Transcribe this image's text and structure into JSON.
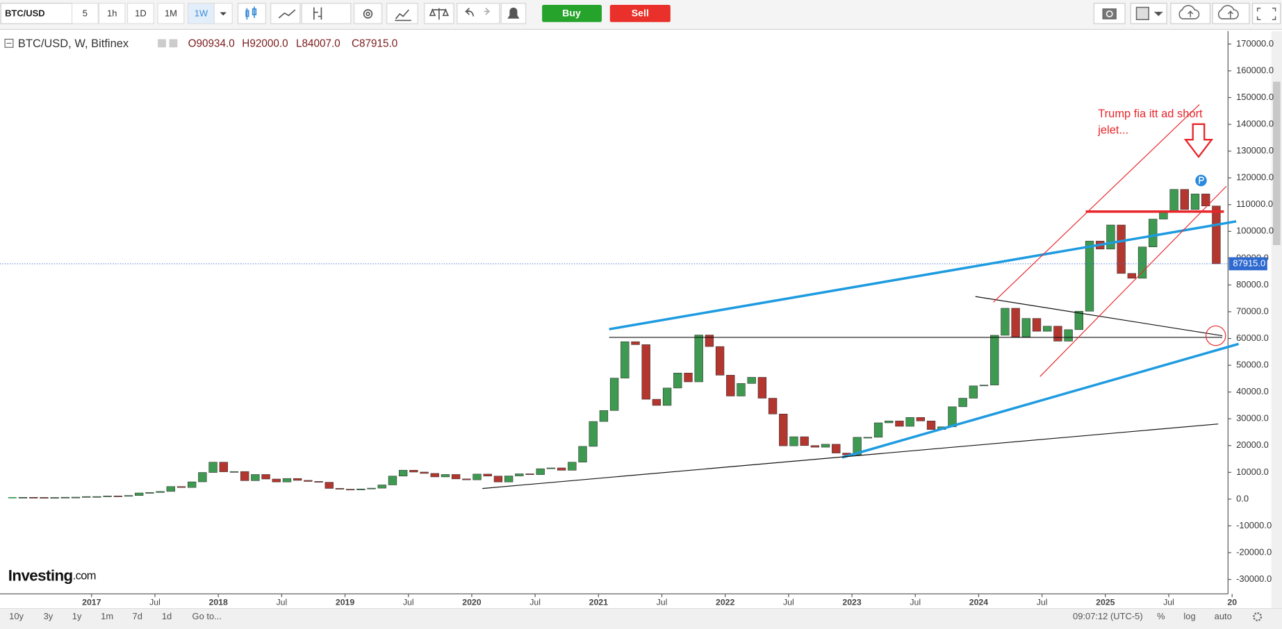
{
  "toolbar": {
    "symbol": "BTC/USD",
    "intervals": [
      "5",
      "1h",
      "1D",
      "1M",
      "1W"
    ],
    "active_interval": "1W",
    "buy": "Buy",
    "sell": "Sell"
  },
  "chart_data": {
    "type": "candlestick",
    "title": "BTC/USD, W, Bitfinex",
    "ohlc": [
      "O90934.0",
      "H92000.0",
      "L84007.0",
      "C87915.0"
    ],
    "annotation": [
      "Trump fia itt ad short",
      "jelet..."
    ],
    "up_color": "#3d9a50",
    "down_color": "#b3362f",
    "grid": false,
    "x": [
      "2016-05",
      "2016-06",
      "2016-07",
      "2016-08",
      "2016-09",
      "2016-10",
      "2016-11",
      "2016-12",
      "2017-01",
      "2017-02",
      "2017-03",
      "2017-04",
      "2017-05",
      "2017-06",
      "2017-07",
      "2017-08",
      "2017-09",
      "2017-10",
      "2017-11",
      "2017-12",
      "2018-01",
      "2018-02",
      "2018-03",
      "2018-04",
      "2018-05",
      "2018-06",
      "2018-07",
      "2018-08",
      "2018-09",
      "2018-10",
      "2018-11",
      "2018-12",
      "2019-01",
      "2019-02",
      "2019-03",
      "2019-04",
      "2019-05",
      "2019-06",
      "2019-07",
      "2019-08",
      "2019-09",
      "2019-10",
      "2019-11",
      "2019-12",
      "2020-01",
      "2020-02",
      "2020-03",
      "2020-04",
      "2020-05",
      "2020-06",
      "2020-07",
      "2020-08",
      "2020-09",
      "2020-10",
      "2020-11",
      "2020-12",
      "2021-01",
      "2021-02",
      "2021-03",
      "2021-04",
      "2021-05",
      "2021-06",
      "2021-07",
      "2021-08",
      "2021-09",
      "2021-10",
      "2021-11",
      "2021-12",
      "2022-01",
      "2022-02",
      "2022-03",
      "2022-04",
      "2022-05",
      "2022-06",
      "2022-07",
      "2022-08",
      "2022-09",
      "2022-10",
      "2022-11",
      "2022-12",
      "2023-01",
      "2023-02",
      "2023-03",
      "2023-04",
      "2023-05",
      "2023-06",
      "2023-07",
      "2023-08",
      "2023-09",
      "2023-10",
      "2023-11",
      "2023-12",
      "2024-01",
      "2024-02",
      "2024-03",
      "2024-04",
      "2024-05",
      "2024-06",
      "2024-07",
      "2024-08",
      "2024-09",
      "2024-10",
      "2024-11",
      "2024-12",
      "2025-01",
      "2025-02",
      "2025-03",
      "2025-04",
      "2025-05",
      "2025-06",
      "2025-07",
      "2025-08",
      "2025-09",
      "2025-10",
      "2025-11"
    ],
    "values": [
      530,
      670,
      625,
      575,
      610,
      700,
      740,
      960,
      970,
      1190,
      1080,
      1350,
      2300,
      2480,
      2870,
      4700,
      4340,
      6450,
      9950,
      13800,
      10200,
      10300,
      6900,
      9200,
      7500,
      6400,
      7700,
      7000,
      6600,
      6300,
      4000,
      3700,
      3450,
      3800,
      4100,
      5300,
      8600,
      10800,
      10100,
      9600,
      8300,
      9200,
      7550,
      7200,
      9350,
      8600,
      6400,
      8650,
      9450,
      9150,
      11350,
      11650,
      10780,
      13800,
      19700,
      29000,
      33100,
      45200,
      58800,
      57700,
      37300,
      35000,
      41500,
      47100,
      43800,
      61300,
      57000,
      46300,
      38500,
      43200,
      45500,
      37700,
      31800,
      19900,
      23300,
      20000,
      19400,
      20500,
      17200,
      16500,
      23100,
      23100,
      28500,
      29200,
      27200,
      30500,
      29200,
      26000,
      27000,
      34500,
      37700,
      42300,
      42600,
      61200,
      71300,
      60600,
      67500,
      62700,
      64600,
      59000,
      63300,
      70200,
      96400,
      93400,
      102400,
      84300,
      82500,
      94200,
      104600,
      107100,
      115700,
      108200,
      114000,
      109500,
      87915
    ],
    "last_price": {
      "value": 87915,
      "label": "87915.0"
    },
    "ylim": [
      -35400,
      174850
    ],
    "yticks": [
      {
        "value": -30000,
        "label": "-30000.0"
      },
      {
        "value": -20000,
        "label": "-20000.0"
      },
      {
        "value": -10000,
        "label": "-10000.0"
      },
      {
        "value": 0,
        "label": "0.0"
      },
      {
        "value": 10000,
        "label": "10000.0"
      },
      {
        "value": 20000,
        "label": "20000.0"
      },
      {
        "value": 30000,
        "label": "30000.0"
      },
      {
        "value": 40000,
        "label": "40000.0"
      },
      {
        "value": 50000,
        "label": "50000.0"
      },
      {
        "value": 60000,
        "label": "60000.0"
      },
      {
        "value": 70000,
        "label": "70000.0"
      },
      {
        "value": 80000,
        "label": "80000.0"
      },
      {
        "value": 90000,
        "label": "90000.0"
      },
      {
        "value": 100000,
        "label": "100000.0"
      },
      {
        "value": 110000,
        "label": "110000.0"
      },
      {
        "value": 120000,
        "label": "120000.0"
      },
      {
        "value": 130000,
        "label": "130000.0"
      },
      {
        "value": 140000,
        "label": "140000.0"
      },
      {
        "value": 150000,
        "label": "150000.0"
      },
      {
        "value": 160000,
        "label": "160000.0"
      },
      {
        "value": 170000,
        "label": "170000.0"
      }
    ],
    "xticks": [
      {
        "value": "2017-01",
        "label": "2017"
      },
      {
        "value": "2017-07",
        "label": "Jul"
      },
      {
        "value": "2018-01",
        "label": "2018"
      },
      {
        "value": "2018-07",
        "label": "Jul"
      },
      {
        "value": "2019-01",
        "label": "2019"
      },
      {
        "value": "2019-07",
        "label": "Jul"
      },
      {
        "value": "2020-01",
        "label": "2020"
      },
      {
        "value": "2020-07",
        "label": "Jul"
      },
      {
        "value": "2021-01",
        "label": "2021"
      },
      {
        "value": "2021-07",
        "label": "Jul"
      },
      {
        "value": "2022-01",
        "label": "2022"
      },
      {
        "value": "2022-07",
        "label": "Jul"
      },
      {
        "value": "2023-01",
        "label": "2023"
      },
      {
        "value": "2023-07",
        "label": "Jul"
      },
      {
        "value": "2024-01",
        "label": "2024"
      },
      {
        "value": "2024-07",
        "label": "Jul"
      },
      {
        "value": "2025-01",
        "label": "2025"
      },
      {
        "value": "2025-07",
        "label": "Jul"
      },
      {
        "value": "2026-01",
        "label": "20"
      }
    ]
  },
  "logo": {
    "name": "Investing",
    "suffix": ".com"
  },
  "footer": {
    "ranges": [
      "10y",
      "3y",
      "1y",
      "1m",
      "7d",
      "1d"
    ],
    "goto": "Go to...",
    "time": "09:07:12 (UTC-5)",
    "percent": "%",
    "log": "log",
    "auto": "auto"
  }
}
